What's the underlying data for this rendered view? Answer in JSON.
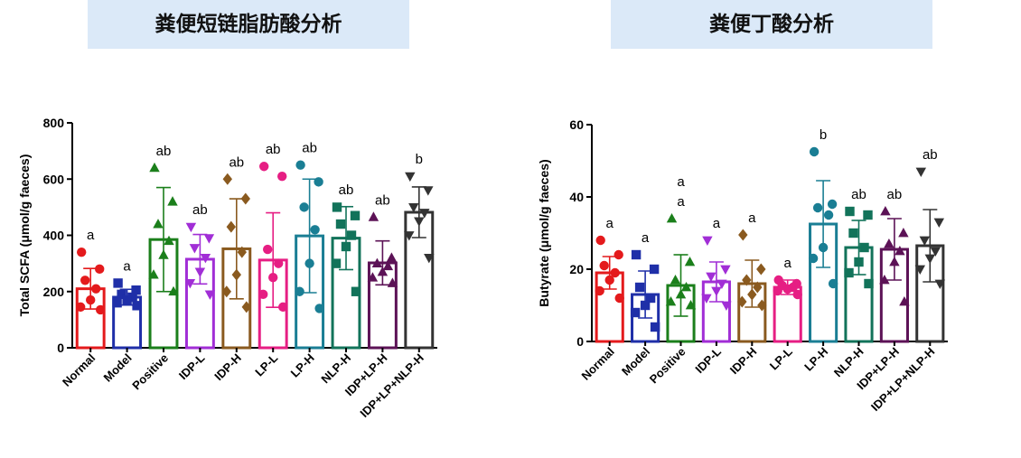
{
  "panels": [
    {
      "title": "粪便短链脂肪酸分析"
    },
    {
      "title": "粪便丁酸分析"
    }
  ],
  "chart_data": [
    {
      "type": "bar",
      "ylabel": "Total SCFA (μmol/g faeces)",
      "ylim": [
        0,
        800
      ],
      "yticks": [
        0,
        200,
        400,
        600,
        800
      ],
      "categories": [
        "Normal",
        "Model",
        "Positive",
        "IDP-L",
        "IDP-H",
        "LP-L",
        "LP-H",
        "NLP-H",
        "IDP+LP-H",
        "IDP+LP+NLP-H"
      ],
      "colors": [
        "#e41a1c",
        "#1f2fa8",
        "#1b7f1b",
        "#a12ed6",
        "#8a5a1f",
        "#e61e83",
        "#1a7e94",
        "#12735a",
        "#5c1256",
        "#333333"
      ],
      "markers": [
        "circle",
        "square",
        "triangle-up",
        "triangle-down",
        "diamond",
        "circle",
        "circle",
        "square",
        "triangle-up",
        "triangle-down"
      ],
      "means": [
        210,
        180,
        385,
        315,
        352,
        312,
        398,
        390,
        302,
        482
      ],
      "sd": [
        72,
        28,
        185,
        88,
        178,
        168,
        202,
        112,
        78,
        90
      ],
      "points": [
        [
          340,
          280,
          240,
          210,
          170,
          145,
          135
        ],
        [
          230,
          205,
          190,
          180,
          170,
          160,
          150
        ],
        [
          640,
          520,
          440,
          380,
          330,
          260,
          200
        ],
        [
          430,
          390,
          355,
          320,
          270,
          230,
          190
        ],
        [
          600,
          530,
          430,
          340,
          260,
          200,
          145
        ],
        [
          645,
          610,
          350,
          300,
          250,
          190,
          145
        ],
        [
          650,
          590,
          500,
          420,
          300,
          200,
          140
        ],
        [
          500,
          470,
          440,
          400,
          360,
          300,
          200
        ],
        [
          465,
          320,
          300,
          290,
          270,
          250,
          230
        ],
        [
          610,
          560,
          500,
          480,
          450,
          400,
          320
        ]
      ],
      "annotations": [
        "a",
        "a",
        "ab",
        "ab",
        "ab",
        "ab",
        "ab",
        "ab",
        "ab",
        "b"
      ]
    },
    {
      "type": "bar",
      "ylabel": "Butyrate (μmol/g faeces)",
      "ylim": [
        0,
        60
      ],
      "yticks": [
        0,
        20,
        40,
        60
      ],
      "categories": [
        "Normal",
        "Model",
        "Positive",
        "IDP-L",
        "IDP-H",
        "LP-L",
        "LP-H",
        "NLP-H",
        "IDP+LP-H",
        "IDP+LP+NLP-H"
      ],
      "colors": [
        "#e41a1c",
        "#1f2fa8",
        "#1b7f1b",
        "#a12ed6",
        "#8a5a1f",
        "#e61e83",
        "#1a7e94",
        "#12735a",
        "#5c1256",
        "#333333"
      ],
      "markers": [
        "circle",
        "square",
        "triangle-up",
        "triangle-down",
        "diamond",
        "circle",
        "circle",
        "square",
        "triangle-up",
        "triangle-down"
      ],
      "means": [
        19,
        13,
        15.5,
        16.5,
        16,
        15,
        32.5,
        26,
        25.5,
        26.5
      ],
      "sd": [
        4.5,
        6.5,
        8.5,
        5.5,
        6.5,
        2,
        12,
        7.5,
        8.5,
        10
      ],
      "points": [
        [
          28,
          24,
          21,
          19,
          17,
          14,
          12
        ],
        [
          24,
          20,
          15,
          12,
          10,
          8,
          4
        ],
        [
          34,
          22,
          17,
          15,
          13,
          11,
          10
        ],
        [
          28,
          20,
          18,
          16,
          14,
          12,
          10
        ],
        [
          29.5,
          20,
          17,
          15,
          13,
          11,
          10
        ],
        [
          17,
          16,
          15.5,
          15,
          14.5,
          14,
          13
        ],
        [
          52.5,
          38,
          37,
          35,
          26,
          23,
          16
        ],
        [
          36,
          35,
          30,
          26,
          22,
          19,
          16
        ],
        [
          36,
          30,
          27,
          25,
          22,
          17,
          11
        ],
        [
          47,
          33,
          28,
          25,
          23,
          20,
          16
        ]
      ],
      "annotations": [
        [
          "a"
        ],
        [
          "a"
        ],
        [
          "a",
          "a"
        ],
        [
          "a"
        ],
        [
          "a"
        ],
        [
          "a"
        ],
        [
          "b"
        ],
        [
          "ab"
        ],
        [
          "ab"
        ],
        [
          "ab"
        ]
      ]
    }
  ]
}
